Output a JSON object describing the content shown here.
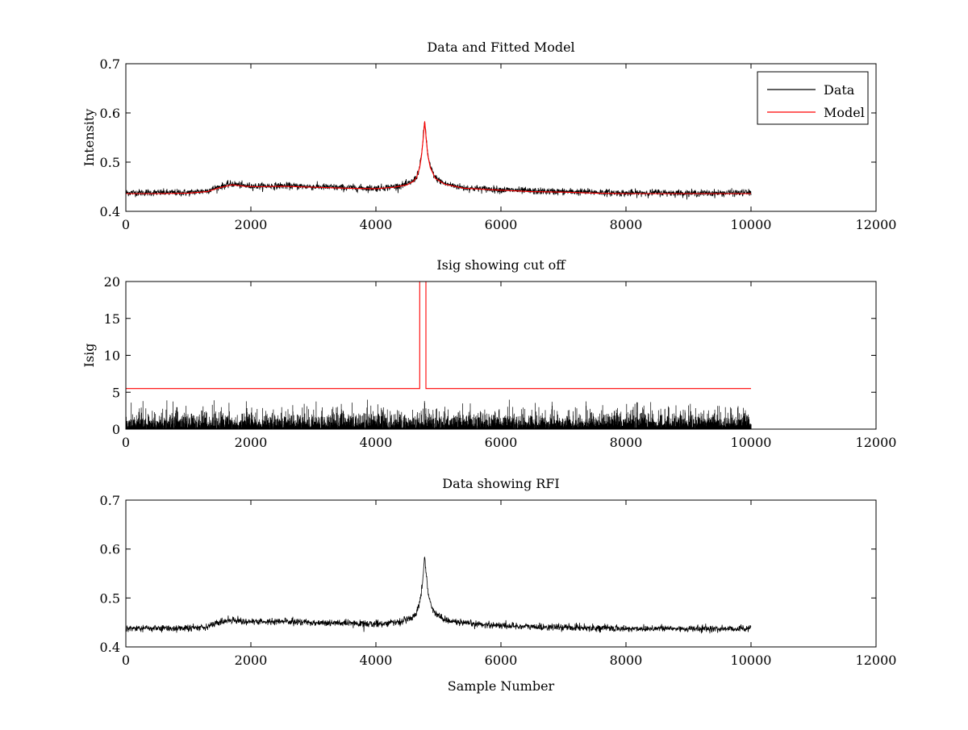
{
  "chart_data": [
    {
      "type": "line",
      "title": "Data and Fitted Model",
      "xlabel": "",
      "ylabel": "Intensity",
      "xlim": [
        0,
        12000
      ],
      "ylim": [
        0.4,
        0.7
      ],
      "xticks": [
        0,
        2000,
        4000,
        6000,
        8000,
        10000,
        12000
      ],
      "yticks": [
        0.4,
        0.5,
        0.6,
        0.7
      ],
      "xtick_labels": [
        "0",
        "2000",
        "4000",
        "6000",
        "8000",
        "10000",
        "12000"
      ],
      "ytick_labels": [
        "0.4",
        "0.5",
        "0.6",
        "0.7"
      ],
      "legend": {
        "position": "top-right",
        "entries": [
          "Data",
          "Model"
        ]
      },
      "series": [
        {
          "name": "Data",
          "color": "#000000",
          "noise": 0.007,
          "x": [
            0,
            500,
            1000,
            1300,
            1500,
            1700,
            1900,
            2100,
            2500,
            3000,
            3500,
            4000,
            4300,
            4500,
            4600,
            4650,
            4700,
            4730,
            4760,
            4780,
            4800,
            4830,
            4870,
            4950,
            5100,
            5400,
            6000,
            6500,
            7000,
            7500,
            8000,
            8500,
            9000,
            9500,
            10000
          ],
          "y": [
            0.438,
            0.438,
            0.438,
            0.442,
            0.45,
            0.456,
            0.452,
            0.451,
            0.452,
            0.45,
            0.448,
            0.447,
            0.45,
            0.455,
            0.462,
            0.47,
            0.49,
            0.515,
            0.555,
            0.585,
            0.556,
            0.515,
            0.49,
            0.468,
            0.456,
            0.448,
            0.444,
            0.441,
            0.44,
            0.439,
            0.437,
            0.438,
            0.437,
            0.437,
            0.438
          ]
        },
        {
          "name": "Model",
          "color": "#ff0000",
          "noise": 0,
          "x": [
            0,
            500,
            1000,
            1300,
            1500,
            1700,
            1900,
            2100,
            2500,
            3000,
            3500,
            4000,
            4300,
            4500,
            4600,
            4650,
            4700,
            4730,
            4760,
            4780,
            4800,
            4830,
            4870,
            4950,
            5100,
            5400,
            6000,
            6500,
            7000,
            7500,
            8000,
            8500,
            9000,
            9500,
            10000
          ],
          "y": [
            0.436,
            0.436,
            0.437,
            0.44,
            0.448,
            0.454,
            0.451,
            0.45,
            0.451,
            0.449,
            0.447,
            0.446,
            0.449,
            0.454,
            0.461,
            0.469,
            0.489,
            0.514,
            0.553,
            0.583,
            0.554,
            0.514,
            0.489,
            0.467,
            0.455,
            0.447,
            0.443,
            0.44,
            0.439,
            0.437,
            0.436,
            0.436,
            0.436,
            0.436,
            0.436
          ]
        }
      ]
    },
    {
      "type": "line",
      "title": "Isig showing cut off",
      "xlabel": "",
      "ylabel": "Isig",
      "xlim": [
        0,
        12000
      ],
      "ylim": [
        0,
        20
      ],
      "xticks": [
        0,
        2000,
        4000,
        6000,
        8000,
        10000,
        12000
      ],
      "yticks": [
        0,
        5,
        10,
        15,
        20
      ],
      "xtick_labels": [
        "0",
        "2000",
        "4000",
        "6000",
        "8000",
        "10000",
        "12000"
      ],
      "ytick_labels": [
        "0",
        "5",
        "10",
        "15",
        "20"
      ],
      "series": [
        {
          "name": "Isig",
          "color": "#000000",
          "kind": "spikes",
          "x_range": [
            0,
            10000
          ],
          "typical_max": 2.5,
          "peak_max": 4.0
        },
        {
          "name": "cut off",
          "color": "#ff0000",
          "noise": 0,
          "x": [
            0,
            4700,
            4700,
            4800,
            4800,
            10000
          ],
          "y": [
            5.5,
            5.5,
            20,
            20,
            5.5,
            5.5
          ]
        }
      ]
    },
    {
      "type": "line",
      "title": "Data showing RFI",
      "xlabel": "Sample Number",
      "ylabel": "",
      "xlim": [
        0,
        12000
      ],
      "ylim": [
        0.4,
        0.7
      ],
      "xticks": [
        0,
        2000,
        4000,
        6000,
        8000,
        10000,
        12000
      ],
      "yticks": [
        0.4,
        0.5,
        0.6,
        0.7
      ],
      "xtick_labels": [
        "0",
        "2000",
        "4000",
        "6000",
        "8000",
        "10000",
        "12000"
      ],
      "ytick_labels": [
        "0.4",
        "0.5",
        "0.6",
        "0.7"
      ],
      "series": [
        {
          "name": "Data",
          "color": "#000000",
          "noise": 0.007,
          "x": [
            0,
            500,
            1000,
            1300,
            1500,
            1700,
            1900,
            2100,
            2500,
            3000,
            3500,
            4000,
            4300,
            4500,
            4600,
            4650,
            4700,
            4730,
            4760,
            4780,
            4800,
            4830,
            4870,
            4950,
            5100,
            5400,
            6000,
            6500,
            7000,
            7500,
            8000,
            8500,
            9000,
            9500,
            10000
          ],
          "y": [
            0.438,
            0.438,
            0.438,
            0.442,
            0.45,
            0.456,
            0.452,
            0.451,
            0.452,
            0.45,
            0.448,
            0.447,
            0.45,
            0.455,
            0.462,
            0.47,
            0.49,
            0.515,
            0.555,
            0.585,
            0.556,
            0.515,
            0.49,
            0.468,
            0.456,
            0.448,
            0.444,
            0.441,
            0.44,
            0.439,
            0.437,
            0.438,
            0.437,
            0.437,
            0.438
          ]
        }
      ]
    }
  ]
}
